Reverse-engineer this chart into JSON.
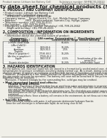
{
  "bg_color": "#ffffff",
  "page_bg": "#f0efe8",
  "header_left": "Product name: Lithium Ion Battery Cell",
  "header_right_line1": "Substance number: SIHFBC30-00010",
  "header_right_line2": "Established / Revision: Dec.7.2010",
  "title": "Safety data sheet for chemical products (SDS)",
  "section1_title": "1. PRODUCT AND COMPANY IDENTIFICATION",
  "section1_lines": [
    "• Product name: Lithium Ion Battery Cell",
    "• Product code: Cylindrical-type cell",
    "     (IHF88500, IHF188500, IHF88500A)",
    "• Company name:    Sanyo Electric Co., Ltd., Mobile Energy Company",
    "• Address:            2001  Kamitsunakami, Sumoto-City, Hyogo, Japan",
    "• Telephone number: +81-799-26-4111",
    "• Fax number:   +81-799-26-4129",
    "• Emergency telephone number (Weekday) +81-799-26-2662",
    "     (Night and holiday) +81-799-26-4101"
  ],
  "section2_title": "2. COMPOSITION / INFORMATION ON INGREDIENTS",
  "section2_intro": "• Substance or preparation: Preparation",
  "section2_sub": "  • Information about the chemical nature of product:",
  "table_headers_row1": [
    "Component / chemical name",
    "CAS number",
    "Concentration /",
    "Classification and"
  ],
  "table_headers_row2": [
    "General name",
    "",
    "Concentration range",
    "hazard labeling"
  ],
  "table_rows": [
    [
      "Lithium cobalt oxide",
      "-",
      "60-80%",
      "-"
    ],
    [
      "(LiMn+CoNiO2)",
      "",
      "",
      ""
    ],
    [
      "Iron",
      "7439-89-6",
      "10-20%",
      "-"
    ],
    [
      "Aluminum",
      "7429-90-5",
      "2-5%",
      "-"
    ],
    [
      "Graphite",
      "",
      "",
      ""
    ],
    [
      "(Metal in graphite+)",
      "17185-68-5",
      "10-20%",
      ""
    ],
    [
      "(Air film in graphite+)",
      "17182-42-2",
      "",
      ""
    ],
    [
      "Copper",
      "7440-50-8",
      "0-15%",
      "Sensitization of the skin"
    ],
    [
      "",
      "",
      "",
      "group No.2"
    ],
    [
      "Organic electrolyte",
      "-",
      "10-20%",
      "Inflammable liquid"
    ]
  ],
  "section3_title": "3. HAZARDS IDENTIFICATION",
  "section3_lines": [
    "For the battery cell, chemical materials are stored in a hermetically sealed metal case, designed to withstand",
    "temperatures or pressure conditions occurring during normal use. As a result, during normal use, there is no",
    "physical danger of ignition or explosion and therefore danger of hazardous materials leakage.",
    "   However, if exposed to a fire, added mechanical shocks, decomposed, when electric shock, dry may cause,",
    "the gas nozzle vent can be operated. The battery cell case will be breached (if fire-polemic, hazardous",
    "materials may be released.",
    "   Moreover, if heated strongly by the surrounding fire, solid gas may be emitted."
  ],
  "section3_bullet1": "• Most important hazard and effects:",
  "section3_human": "    Human health effects:",
  "section3_human_lines": [
    "       Inhalation: The release of the electrolyte has an anesthesia action and stimulates in respiratory tract.",
    "       Skin contact: The release of the electrolyte stimulates a skin. The electrolyte skin contact causes a",
    "       sore and stimulation on the skin.",
    "       Eye contact: The release of the electrolyte stimulates eyes. The electrolyte eye contact causes a sore",
    "       and stimulation on the eye. Especially, a substance that causes a strong inflammation of the eye is",
    "       contained.",
    "       Environmental effects: Since a battery cell remains in the environment, do not throw out it into the",
    "       environment."
  ],
  "section3_specific": "• Specific hazards:",
  "section3_specific_lines": [
    "    If the electrolyte contacts with water, it will generate detrimental hydrogen fluoride.",
    "    Since the seal electrolyte is inflammable liquid, do not bring close to fire."
  ],
  "footer_line": true
}
